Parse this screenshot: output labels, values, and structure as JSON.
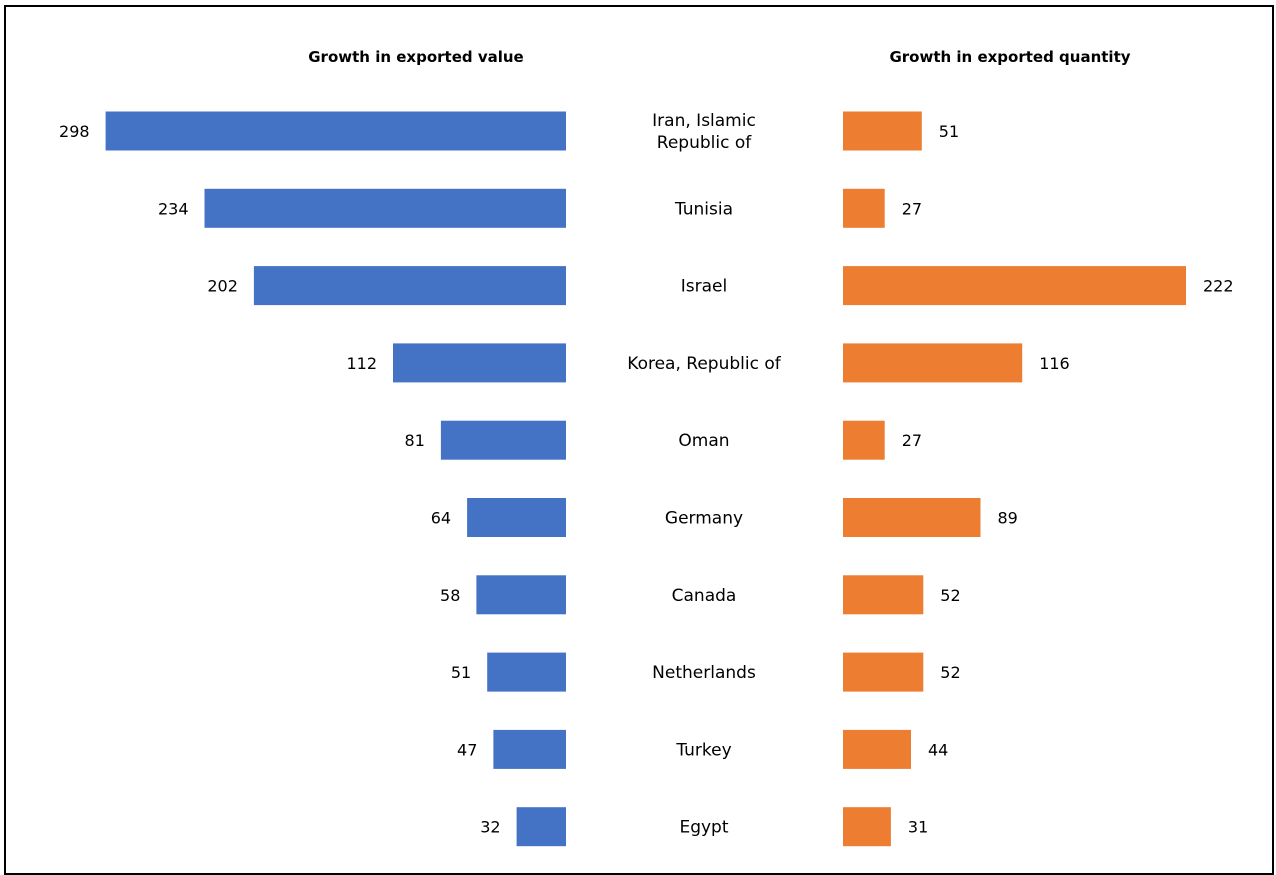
{
  "chart_data": {
    "type": "bar",
    "orientation": "horizontal",
    "layout": "butterfly",
    "categories": [
      [
        "Iran, Islamic",
        "Republic of"
      ],
      [
        "Tunisia"
      ],
      [
        "Israel"
      ],
      [
        "Korea, Republic of"
      ],
      [
        "Oman"
      ],
      [
        "Germany"
      ],
      [
        "Canada"
      ],
      [
        "Netherlands"
      ],
      [
        "Turkey"
      ],
      [
        "Egypt"
      ]
    ],
    "series": [
      {
        "name": "Growth in exported value",
        "color": "#4472C4",
        "values": [
          298,
          234,
          202,
          112,
          81,
          64,
          58,
          51,
          47,
          32
        ]
      },
      {
        "name": "Growth in exported quantity",
        "color": "#ED7D31",
        "values": [
          51,
          27,
          222,
          116,
          27,
          89,
          52,
          52,
          44,
          31
        ]
      }
    ],
    "xlim": [
      0,
      298
    ],
    "data_labels": true,
    "grid": false,
    "legend": "none"
  }
}
